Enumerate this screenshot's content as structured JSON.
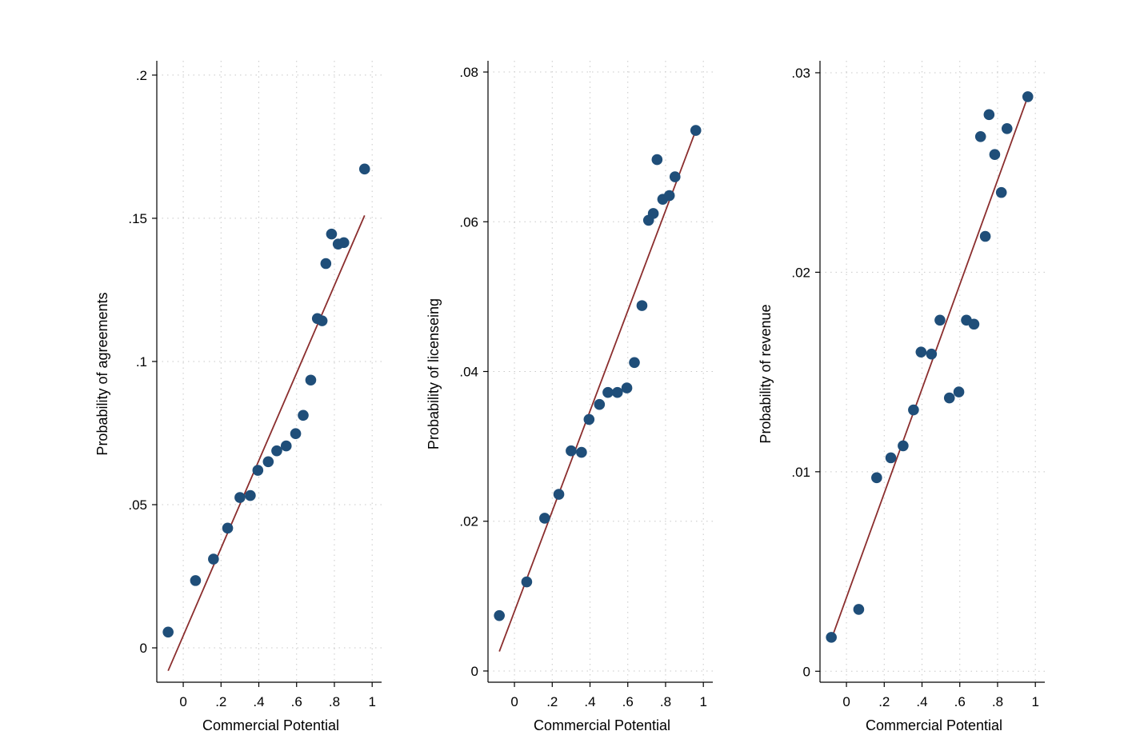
{
  "chart_data": [
    {
      "type": "scatter",
      "xlabel": "Commercial Potential",
      "ylabel": "Probability of agreements",
      "xlim": [
        -0.14,
        1.05
      ],
      "ylim": [
        -0.012,
        0.205
      ],
      "x_ticks": [
        0,
        0.2,
        0.4,
        0.6,
        0.8,
        1
      ],
      "x_tick_labels": [
        "0",
        ".2",
        ".4",
        ".6",
        ".8",
        "1"
      ],
      "y_ticks": [
        0,
        0.05,
        0.1,
        0.15,
        0.2
      ],
      "y_tick_labels": [
        "0",
        ".05",
        ".1",
        ".15",
        ".2"
      ],
      "grid": true,
      "points": [
        [
          -0.08,
          0.0055
        ],
        [
          0.065,
          0.0235
        ],
        [
          0.16,
          0.031
        ],
        [
          0.235,
          0.0418
        ],
        [
          0.3,
          0.0525
        ],
        [
          0.355,
          0.0532
        ],
        [
          0.395,
          0.062
        ],
        [
          0.45,
          0.065
        ],
        [
          0.495,
          0.0688
        ],
        [
          0.545,
          0.0705
        ],
        [
          0.595,
          0.0748
        ],
        [
          0.635,
          0.0812
        ],
        [
          0.675,
          0.0935
        ],
        [
          0.71,
          0.115
        ],
        [
          0.735,
          0.1142
        ],
        [
          0.755,
          0.1342
        ],
        [
          0.785,
          0.1445
        ],
        [
          0.82,
          0.141
        ],
        [
          0.85,
          0.1415
        ],
        [
          0.96,
          0.1672
        ]
      ],
      "fit_line": [
        [
          -0.08,
          -0.008
        ],
        [
          0.96,
          0.151
        ]
      ],
      "colors": {
        "points": "#1f4e79",
        "line": "#8b2e2e",
        "grid": "#c8c8c8"
      }
    },
    {
      "type": "scatter",
      "xlabel": "Commercial Potential",
      "ylabel": "Probability of licenseing",
      "xlim": [
        -0.14,
        1.05
      ],
      "ylim": [
        -0.0015,
        0.0815
      ],
      "x_ticks": [
        0,
        0.2,
        0.4,
        0.6,
        0.8,
        1
      ],
      "x_tick_labels": [
        "0",
        ".2",
        ".4",
        ".6",
        ".8",
        "1"
      ],
      "y_ticks": [
        0,
        0.02,
        0.04,
        0.06,
        0.08
      ],
      "y_tick_labels": [
        "0",
        ".02",
        ".04",
        ".06",
        ".08"
      ],
      "grid": true,
      "points": [
        [
          -0.08,
          0.0074
        ],
        [
          0.065,
          0.0119
        ],
        [
          0.16,
          0.0204
        ],
        [
          0.235,
          0.0236
        ],
        [
          0.3,
          0.0294
        ],
        [
          0.355,
          0.0292
        ],
        [
          0.395,
          0.0336
        ],
        [
          0.45,
          0.0356
        ],
        [
          0.495,
          0.0372
        ],
        [
          0.545,
          0.0372
        ],
        [
          0.595,
          0.0378
        ],
        [
          0.635,
          0.0412
        ],
        [
          0.675,
          0.0488
        ],
        [
          0.71,
          0.0602
        ],
        [
          0.735,
          0.0611
        ],
        [
          0.755,
          0.0683
        ],
        [
          0.785,
          0.063
        ],
        [
          0.82,
          0.0635
        ],
        [
          0.85,
          0.066
        ],
        [
          0.96,
          0.0722
        ]
      ],
      "fit_line": [
        [
          -0.08,
          0.0026
        ],
        [
          0.96,
          0.0722
        ]
      ],
      "colors": {
        "points": "#1f4e79",
        "line": "#8b2e2e",
        "grid": "#c8c8c8"
      }
    },
    {
      "type": "scatter",
      "xlabel": "Commercial Potential",
      "ylabel": "Probability of revenue",
      "xlim": [
        -0.14,
        1.05
      ],
      "ylim": [
        -0.00055,
        0.0306
      ],
      "x_ticks": [
        0,
        0.2,
        0.4,
        0.6,
        0.8,
        1
      ],
      "x_tick_labels": [
        "0",
        ".2",
        ".4",
        ".6",
        ".8",
        "1"
      ],
      "y_ticks": [
        0,
        0.01,
        0.02,
        0.03
      ],
      "y_tick_labels": [
        "0",
        ".01",
        ".02",
        ".03"
      ],
      "grid": true,
      "points": [
        [
          -0.08,
          0.0017
        ],
        [
          0.065,
          0.0031
        ],
        [
          0.16,
          0.0097
        ],
        [
          0.235,
          0.0107
        ],
        [
          0.3,
          0.0113
        ],
        [
          0.355,
          0.0131
        ],
        [
          0.395,
          0.016
        ],
        [
          0.45,
          0.0159
        ],
        [
          0.495,
          0.0176
        ],
        [
          0.545,
          0.0137
        ],
        [
          0.595,
          0.014
        ],
        [
          0.635,
          0.0176
        ],
        [
          0.675,
          0.0174
        ],
        [
          0.71,
          0.0268
        ],
        [
          0.735,
          0.0218
        ],
        [
          0.755,
          0.0279
        ],
        [
          0.785,
          0.0259
        ],
        [
          0.82,
          0.024
        ],
        [
          0.85,
          0.0272
        ],
        [
          0.96,
          0.0288
        ]
      ],
      "fit_line": [
        [
          -0.08,
          0.0016
        ],
        [
          0.96,
          0.0288
        ]
      ],
      "colors": {
        "points": "#1f4e79",
        "line": "#8b2e2e",
        "grid": "#c8c8c8"
      }
    }
  ]
}
